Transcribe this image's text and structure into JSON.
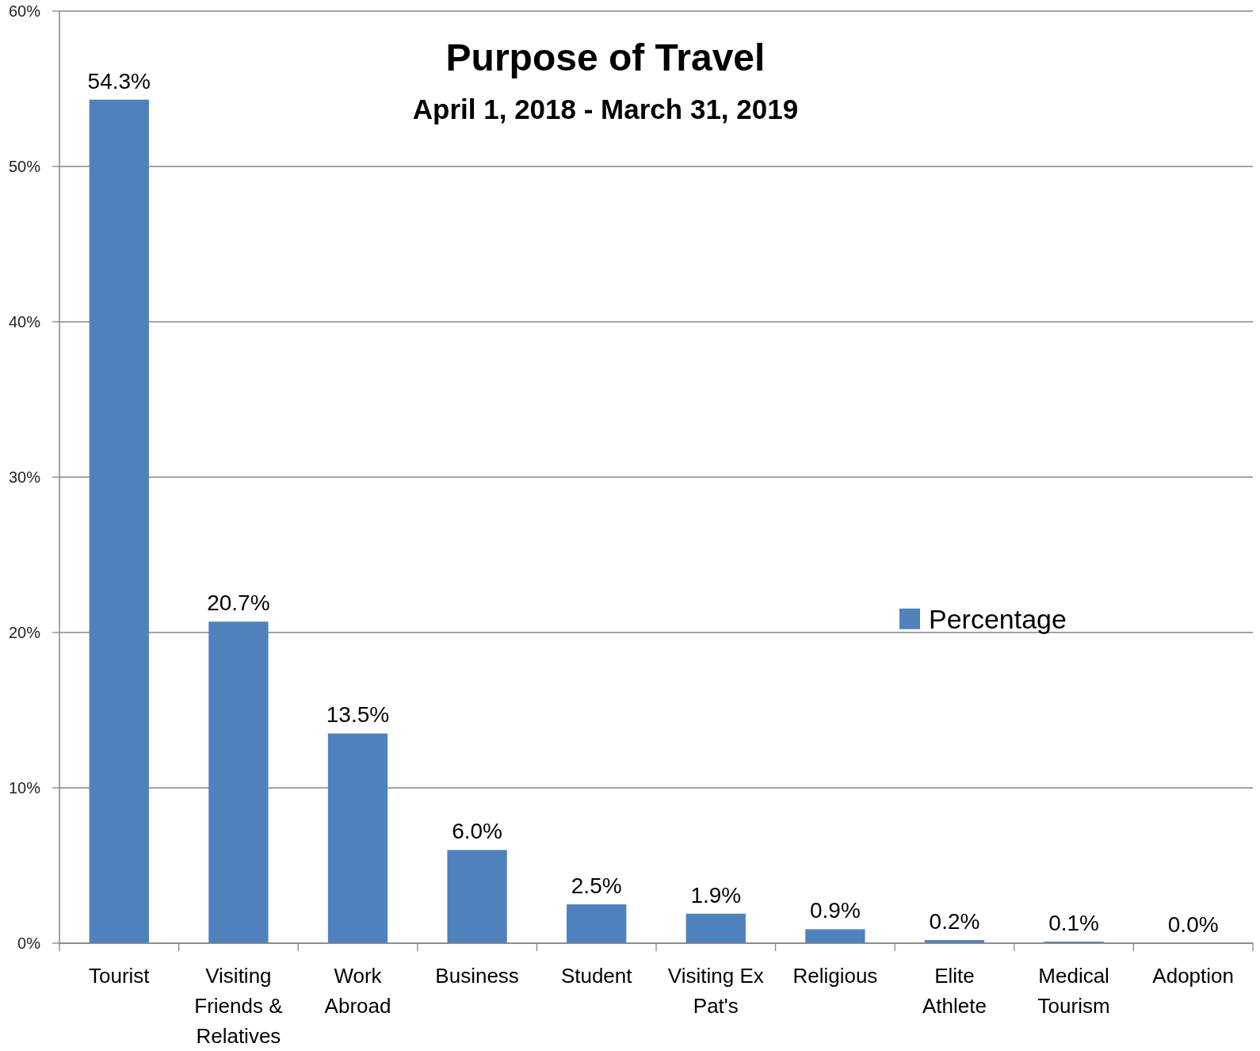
{
  "chart_data": {
    "type": "bar",
    "title": "Purpose of Travel",
    "subtitle": "April 1, 2018 - March 31, 2019",
    "categories": [
      "Tourist",
      "Visiting Friends & Relatives",
      "Work Abroad",
      "Business",
      "Student",
      "Visiting Ex Pat's",
      "Religious",
      "Elite Athlete",
      "Medical Tourism",
      "Adoption"
    ],
    "series": [
      {
        "name": "Percentage",
        "color": "#4f81bd",
        "values": [
          54.3,
          20.7,
          13.5,
          6.0,
          2.5,
          1.9,
          0.9,
          0.2,
          0.1,
          0.0
        ],
        "value_labels": [
          "54.3%",
          "20.7%",
          "13.5%",
          "6.0%",
          "2.5%",
          "1.9%",
          "0.9%",
          "0.2%",
          "0.1%",
          "0.0%"
        ]
      }
    ],
    "ylim": [
      0,
      60
    ],
    "yticks": [
      {
        "value": 0,
        "label": "0%"
      },
      {
        "value": 10,
        "label": "10%"
      },
      {
        "value": 20,
        "label": "20%"
      },
      {
        "value": 30,
        "label": "30%"
      },
      {
        "value": 40,
        "label": "40%"
      },
      {
        "value": 50,
        "label": "50%"
      },
      {
        "value": 60,
        "label": "60%"
      }
    ],
    "grid": "y",
    "legend": "right"
  }
}
